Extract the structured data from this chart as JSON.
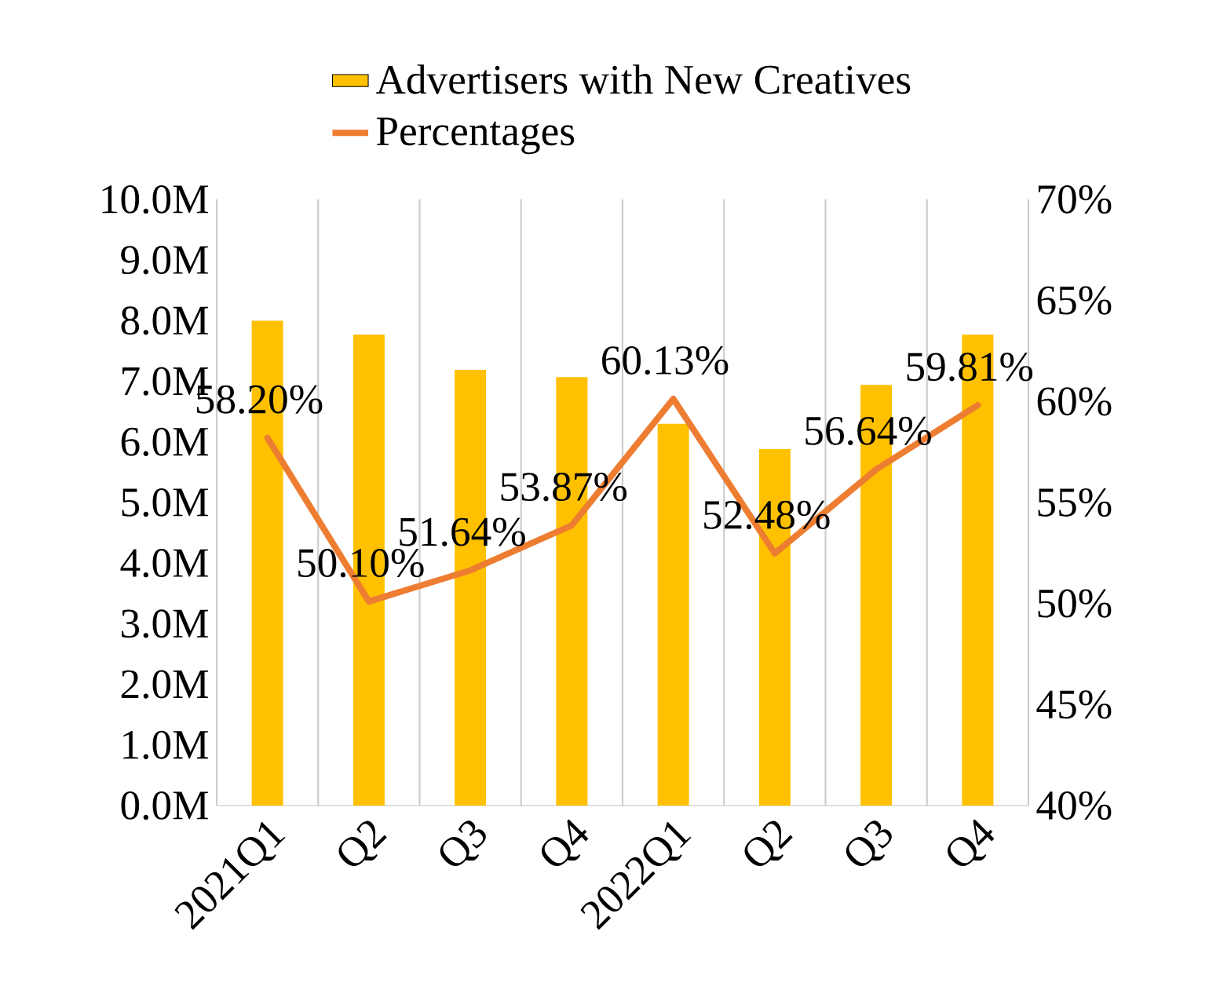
{
  "chart_data": {
    "type": "bar",
    "categories": [
      "2021Q1",
      "Q2",
      "Q3",
      "Q4",
      "2022Q1",
      "Q2",
      "Q3",
      "Q4"
    ],
    "series": [
      {
        "name": "Advertisers with New Creatives",
        "color": "#ffc000",
        "values": [
          8.0,
          7.77,
          7.19,
          7.07,
          6.3,
          5.88,
          6.94,
          7.77
        ]
      },
      {
        "name": "Percentages",
        "type": "line",
        "axis": "y2",
        "color": "#ed7d31",
        "values": [
          58.2,
          50.1,
          51.64,
          53.87,
          60.13,
          52.48,
          56.64,
          59.81
        ],
        "value_labels": [
          "58.20%",
          "50.10%",
          "51.64%",
          "53.87%",
          "60.13%",
          "52.48%",
          "56.64%",
          "59.81%"
        ]
      }
    ],
    "ylim": [
      0,
      10
    ],
    "yticks": [
      {
        "value": 0,
        "label": "0.0M"
      },
      {
        "value": 1,
        "label": "1.0M"
      },
      {
        "value": 2,
        "label": "2.0M"
      },
      {
        "value": 3,
        "label": "3.0M"
      },
      {
        "value": 4,
        "label": "4.0M"
      },
      {
        "value": 5,
        "label": "5.0M"
      },
      {
        "value": 6,
        "label": "6.0M"
      },
      {
        "value": 7,
        "label": "7.0M"
      },
      {
        "value": 8,
        "label": "8.0M"
      },
      {
        "value": 9,
        "label": "9.0M"
      },
      {
        "value": 10,
        "label": "10.0M"
      }
    ],
    "y2lim": [
      40,
      70
    ],
    "y2ticks": [
      {
        "value": 40,
        "label": "40%"
      },
      {
        "value": 45,
        "label": "45%"
      },
      {
        "value": 50,
        "label": "50%"
      },
      {
        "value": 55,
        "label": "55%"
      },
      {
        "value": 60,
        "label": "60%"
      },
      {
        "value": 65,
        "label": "65%"
      },
      {
        "value": 70,
        "label": "70%"
      }
    ],
    "grid": "x",
    "legend": "top",
    "marker": "none",
    "line_style": "solid"
  }
}
